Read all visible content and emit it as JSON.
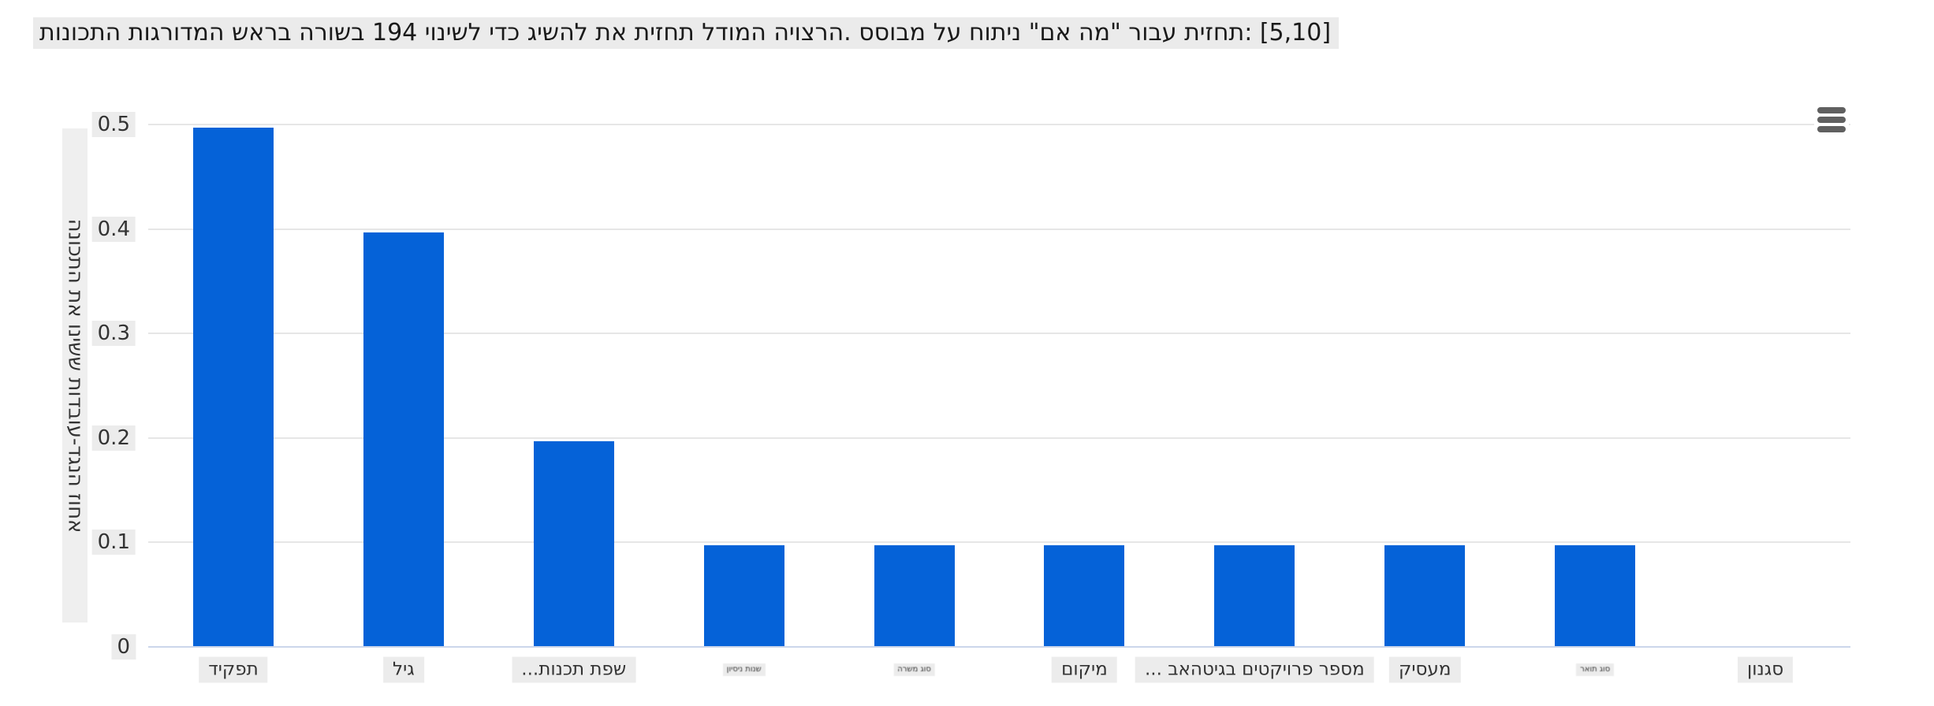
{
  "title": {
    "visual_text": "תונוכתה תוגרודמה שארב הרושב 194 יונישל ידכ גישהל תא תיזחת לדומה היוצרה. ססובמ לע חותינ \"םא המ\" רובע תיזחת: [5,10]",
    "logical_text": "התכונות המדורגות בראש בשורה 194 לשינוי כדי להשיג את תחזית המודל הרצויה. מבוסס על ניתוח \"מה אם\" עבור תחזית: [5,10]"
  },
  "context_menu": {
    "icon": "hamburger-menu-icon"
  },
  "y_axis": {
    "title_visual": "הנוכתה תא ונישש תודבוע-דגנה זוחא",
    "title_logical": "אחוז הנגד-עובדות ששינו את התכונה",
    "ticks": [
      "0.5",
      "0.4",
      "0.3",
      "0.2",
      "0.1",
      "0"
    ]
  },
  "x_axis": {
    "labels_visual": [
      {
        "label": "דיקפת",
        "size": "normal"
      },
      {
        "label": "ליג",
        "size": "normal"
      },
      {
        "label": "...תונכת תפש",
        "size": "normal"
      },
      {
        "label": "ןויסינ תונש",
        "size": "small"
      },
      {
        "label": "הרשמ גוס",
        "size": "small"
      },
      {
        "label": "םוקימ",
        "size": "normal"
      },
      {
        "label": "... באהטיגב םיטקיורפ רפסמ",
        "size": "normal"
      },
      {
        "label": "קיסעמ",
        "size": "normal"
      },
      {
        "label": "ראות גוס",
        "size": "small"
      },
      {
        "label": "ןונגס",
        "size": "normal"
      }
    ]
  },
  "chart_data": {
    "type": "bar",
    "title": "התכונות המדורגות בראש בשורה 194 לשינוי כדי להשיג את תחזית המודל הרצויה. מבוסס על ניתוח \"מה אם\" עבור תחזית: [5,10]",
    "categories": [
      "תפקיד",
      "גיל",
      "שפת תכנות...",
      "שנות ניסיון",
      "סוג משרה",
      "מיקום",
      "מספר פרויקטים בגיטהאב ...",
      "מעסיק",
      "סוג תואר",
      "סגנון"
    ],
    "values": [
      0.5,
      0.4,
      0.2,
      0.1,
      0.1,
      0.1,
      0.1,
      0.1,
      0.1,
      0
    ],
    "xlabel": "",
    "ylabel": "אחוז הנגד-עובדות ששינו את התכונה",
    "ylim": [
      0,
      0.5
    ],
    "y_tick_step": 0.1,
    "grid": true,
    "legend": "none",
    "bar_color": "#0562d8"
  },
  "colors": {
    "bar": "#0562d8",
    "gridline": "#e6e6e6",
    "axis_line": "#ccd6eb",
    "label_background": "#ececec",
    "title_background": "#ebebeb",
    "text": "#333333",
    "menu_icon": "#606060",
    "background": "#ffffff"
  }
}
